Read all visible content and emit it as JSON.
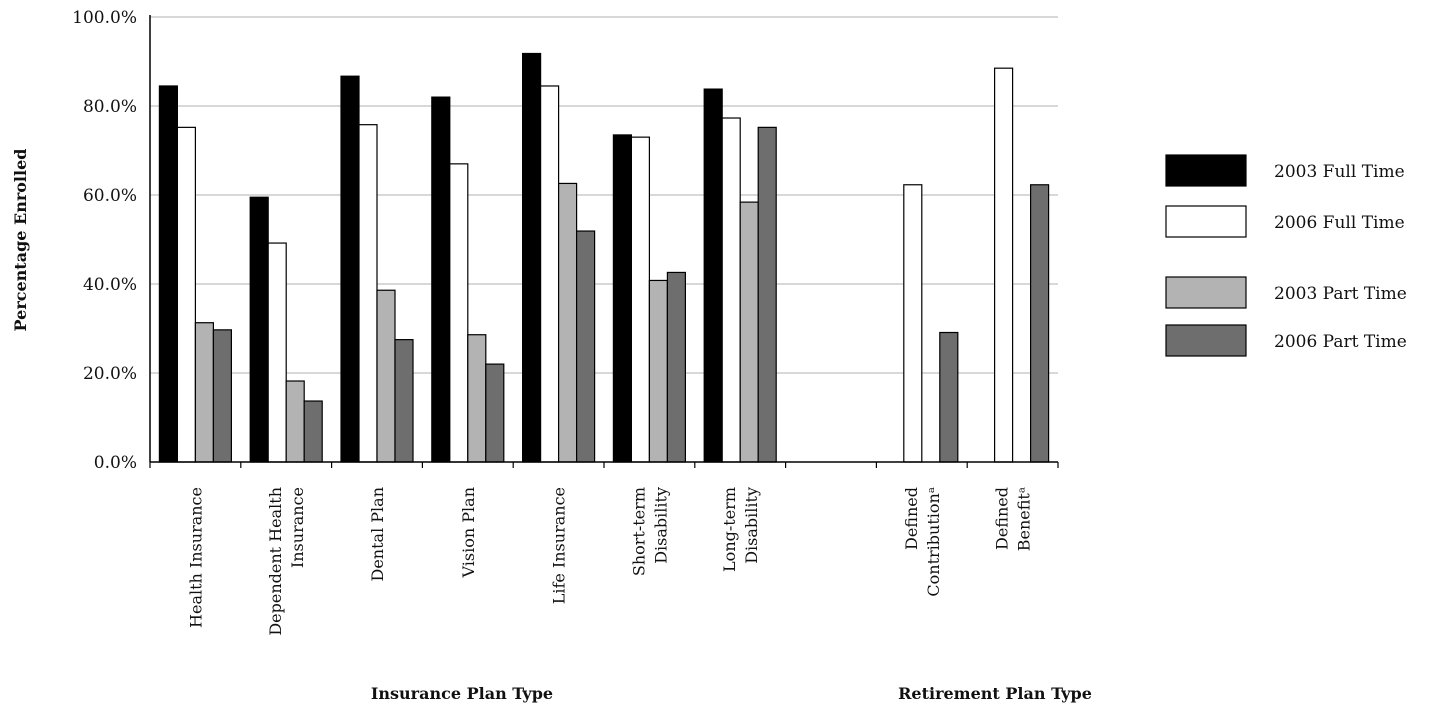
{
  "chart_data": {
    "type": "bar",
    "ylabel": "Percentage Enrolled",
    "ylim": [
      0,
      100
    ],
    "yticks": [
      "0.0%",
      "20.0%",
      "40.0%",
      "60.0%",
      "80.0%",
      "100.0%"
    ],
    "grid": true,
    "legend_position": "right",
    "group_labels": [
      "Insurance Plan Type",
      "Retirement Plan Type"
    ],
    "categories": [
      [
        "Health Insurance"
      ],
      [
        "Dependent Health",
        "Insurance"
      ],
      [
        "Dental Plan"
      ],
      [
        "Vision Plan"
      ],
      [
        "Life Insurance"
      ],
      [
        "Short-term",
        "Disability"
      ],
      [
        "Long-term",
        "Disability"
      ],
      [
        ""
      ],
      [
        "Defined",
        "Contributionᵃ"
      ],
      [
        "Defined",
        "Benefitᵃ"
      ]
    ],
    "series": [
      {
        "name": "2003 Full Time",
        "color": "#000000",
        "values": [
          84.5,
          59.5,
          86.7,
          82.0,
          91.8,
          73.5,
          83.8,
          null,
          null,
          null
        ]
      },
      {
        "name": "2006 Full Time",
        "color": "#ffffff",
        "values": [
          75.2,
          49.2,
          75.8,
          67.0,
          84.5,
          73.0,
          77.3,
          null,
          62.3,
          88.5
        ]
      },
      {
        "name": "2003 Part Time",
        "color": "#b3b3b3",
        "values": [
          31.3,
          18.2,
          38.6,
          28.6,
          62.6,
          40.8,
          58.4,
          null,
          null,
          null
        ]
      },
      {
        "name": "2006 Part Time",
        "color": "#6e6e6e",
        "values": [
          29.7,
          13.7,
          27.5,
          22.0,
          51.9,
          42.6,
          75.2,
          null,
          29.1,
          62.3
        ]
      }
    ]
  }
}
